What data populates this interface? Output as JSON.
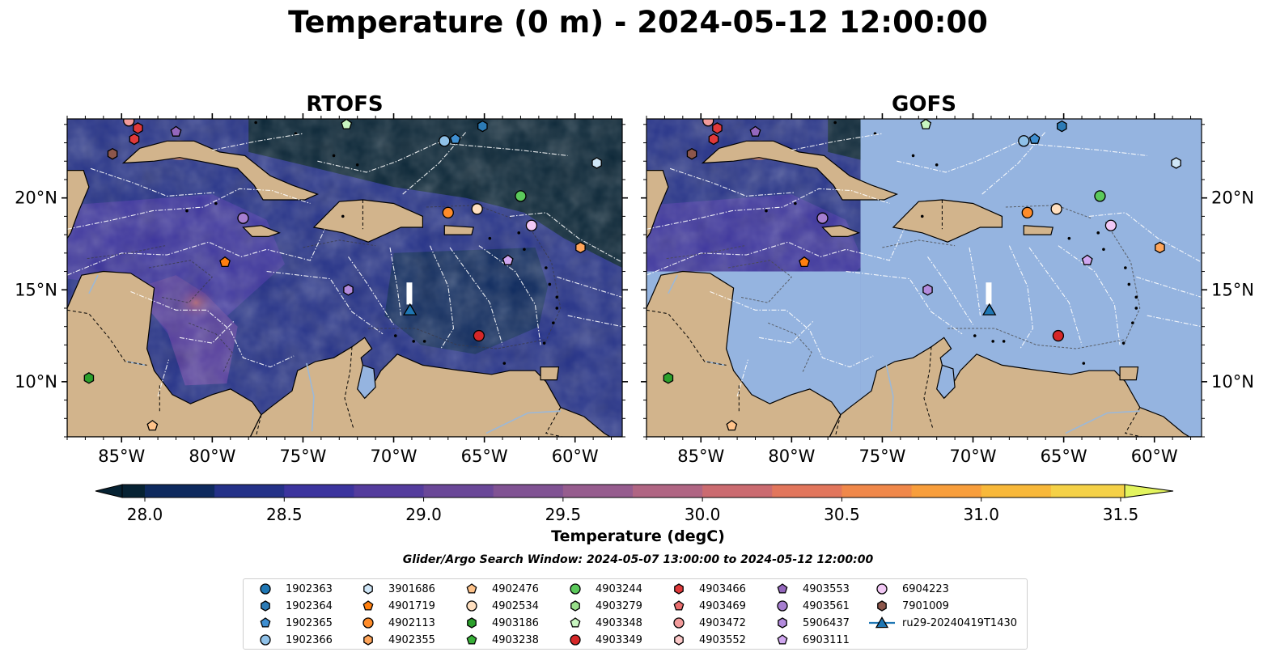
{
  "title": "Temperature (0 m) - 2024-05-12 12:00:00",
  "panels": [
    {
      "title": "RTOFS"
    },
    {
      "title": "GOFS"
    }
  ],
  "map": {
    "lon_range": [
      -88,
      -57.4
    ],
    "lat_range": [
      7,
      24.3
    ],
    "lon_ticks": [
      -85,
      -80,
      -75,
      -70,
      -65,
      -60
    ],
    "lon_tick_labels": [
      "85°W",
      "80°W",
      "75°W",
      "70°W",
      "65°W",
      "60°W"
    ],
    "lat_ticks": [
      10,
      15,
      20
    ],
    "lat_tick_labels": [
      "10°N",
      "15°N",
      "20°N"
    ],
    "land_color": "#d2b48c",
    "gofs_missing_color": "#95b4e0",
    "gofs_data_extent": {
      "lon": [
        -88,
        -76.2
      ],
      "lat": [
        16,
        24.3
      ]
    }
  },
  "colorbar": {
    "label": "Temperature (degC)",
    "min": 28.0,
    "max": 31.5,
    "step": 0.25,
    "extend": "both",
    "ticks": [
      28.0,
      28.5,
      29.0,
      29.5,
      30.0,
      30.5,
      31.0,
      31.5
    ],
    "tick_labels": [
      "28.0",
      "28.5",
      "29.0",
      "29.5",
      "30.0",
      "30.5",
      "31.0",
      "31.5"
    ],
    "colors": [
      "#062233",
      "#0e2a5e",
      "#243188",
      "#3c349e",
      "#543c9d",
      "#6a4798",
      "#805293",
      "#965c8e",
      "#b06583",
      "#cb6b70",
      "#e2765c",
      "#f0884a",
      "#f89e3c",
      "#f8b83a",
      "#f5d147",
      "#e3f45e"
    ]
  },
  "search_window": "Glider/Argo Search Window: 2024-05-07 13:00:00 to 2024-05-12 12:00:00",
  "chart_data": {
    "type": "scatter",
    "x_axis": "longitude",
    "y_axis": "latitude",
    "series": [
      {
        "name": "1902363",
        "color": "#1f77b4",
        "marker": "circle",
        "points": []
      },
      {
        "name": "1902364",
        "color": "#2c7bb6",
        "marker": "hexagon",
        "points": [
          [
            -65.1,
            23.9
          ]
        ]
      },
      {
        "name": "1902365",
        "color": "#3e8ed0",
        "marker": "pentagon",
        "points": [
          [
            -66.6,
            23.2
          ]
        ]
      },
      {
        "name": "1902366",
        "color": "#8fc1e8",
        "marker": "circle",
        "points": [
          [
            -67.2,
            23.1
          ]
        ]
      },
      {
        "name": "3901686",
        "color": "#cfe6f7",
        "marker": "hexagon",
        "points": [
          [
            -58.8,
            21.9
          ]
        ]
      },
      {
        "name": "4901719",
        "color": "#ff7f0e",
        "marker": "pentagon",
        "points": [
          [
            -79.3,
            16.5
          ]
        ]
      },
      {
        "name": "4902113",
        "color": "#ff8c2a",
        "marker": "circle",
        "points": [
          [
            -67.0,
            19.2
          ]
        ]
      },
      {
        "name": "4902355",
        "color": "#ffa55a",
        "marker": "hexagon",
        "points": [
          [
            -59.7,
            17.3
          ]
        ]
      },
      {
        "name": "4902476",
        "color": "#ffc38a",
        "marker": "pentagon",
        "points": [
          [
            -83.3,
            7.6
          ]
        ]
      },
      {
        "name": "4902534",
        "color": "#ffdfbf",
        "marker": "circle",
        "points": [
          [
            -65.4,
            19.4
          ]
        ]
      },
      {
        "name": "4903186",
        "color": "#2ca02c",
        "marker": "hexagon",
        "points": [
          [
            -86.8,
            10.2
          ]
        ]
      },
      {
        "name": "4903238",
        "color": "#38b038",
        "marker": "pentagon",
        "points": []
      },
      {
        "name": "4903244",
        "color": "#5bc95b",
        "marker": "circle",
        "points": [
          [
            -63.0,
            20.1
          ]
        ]
      },
      {
        "name": "4903279",
        "color": "#98df8a",
        "marker": "hexagon",
        "points": []
      },
      {
        "name": "4903348",
        "color": "#c8f5c0",
        "marker": "pentagon",
        "points": [
          [
            -72.6,
            24.0
          ]
        ]
      },
      {
        "name": "4903349",
        "color": "#d62728",
        "marker": "circle",
        "points": [
          [
            -65.3,
            12.5
          ]
        ]
      },
      {
        "name": "4903466",
        "color": "#e0393a",
        "marker": "hexagon",
        "points": [
          [
            -84.1,
            23.8
          ],
          [
            -84.3,
            23.2
          ]
        ]
      },
      {
        "name": "4903469",
        "color": "#ea6d6d",
        "marker": "pentagon",
        "points": []
      },
      {
        "name": "4903472",
        "color": "#f29b9b",
        "marker": "circle",
        "points": [
          [
            -84.6,
            24.2
          ]
        ]
      },
      {
        "name": "4903552",
        "color": "#fcc9c9",
        "marker": "hexagon",
        "points": []
      },
      {
        "name": "4903553",
        "color": "#9467bd",
        "marker": "pentagon",
        "points": [
          [
            -82.0,
            23.6
          ]
        ]
      },
      {
        "name": "4903561",
        "color": "#a67ed0",
        "marker": "circle",
        "points": [
          [
            -78.3,
            18.9
          ]
        ]
      },
      {
        "name": "5906437",
        "color": "#b38bdd",
        "marker": "hexagon",
        "points": [
          [
            -72.5,
            15.0
          ]
        ]
      },
      {
        "name": "6903111",
        "color": "#d0a7f0",
        "marker": "pentagon",
        "points": [
          [
            -63.7,
            16.6
          ]
        ]
      },
      {
        "name": "6904223",
        "color": "#f2c8f5",
        "marker": "circle",
        "points": [
          [
            -62.4,
            18.5
          ]
        ]
      },
      {
        "name": "7901009",
        "color": "#8c564b",
        "marker": "hexagon",
        "points": [
          [
            -85.5,
            22.4
          ]
        ]
      },
      {
        "name": "ru29-20240419T1430",
        "color": "#1f77b4",
        "marker": "triangle",
        "points": [
          [
            -69.1,
            13.9
          ]
        ]
      }
    ]
  }
}
